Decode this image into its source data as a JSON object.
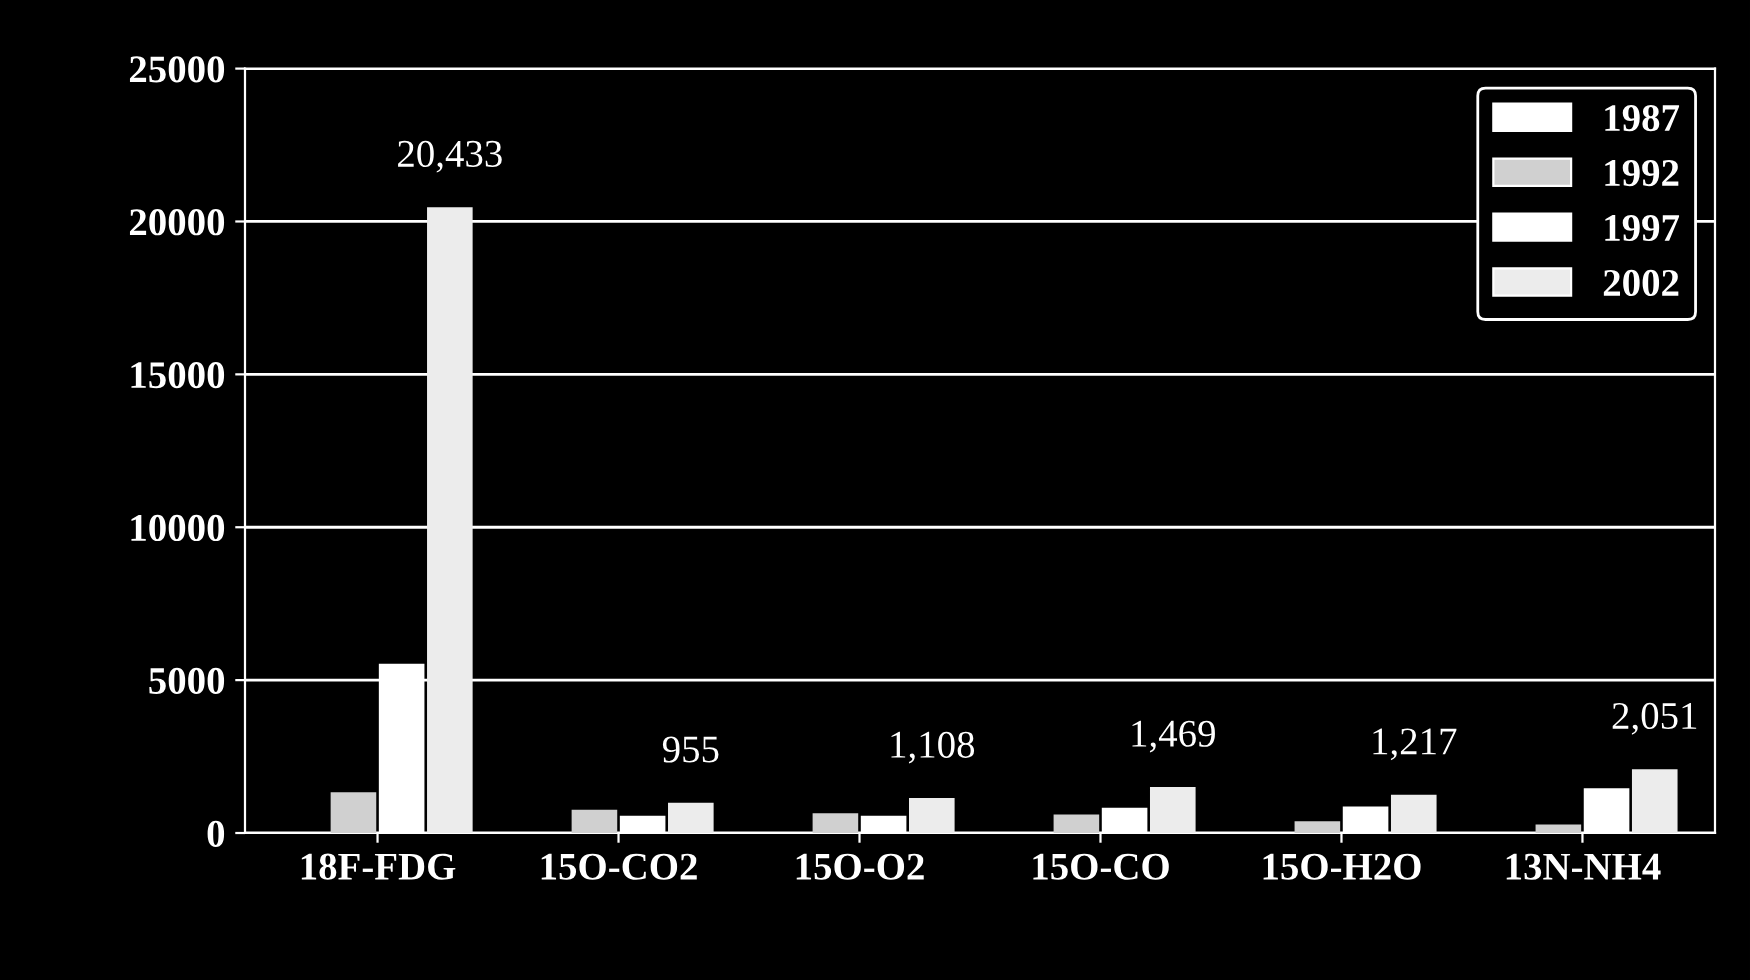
{
  "chart_data": {
    "type": "bar",
    "categories": [
      "18F-FDG",
      "15O-CO2",
      "15O-O2",
      "15O-CO",
      "15O-H2O",
      "13N-NH4"
    ],
    "series": [
      {
        "name": "1987",
        "color": "#ffffff",
        "values": [
          0,
          0,
          0,
          0,
          0,
          0
        ]
      },
      {
        "name": "1992",
        "color": "#d0d0d0",
        "values": [
          1300,
          720,
          610,
          570,
          350,
          240
        ]
      },
      {
        "name": "1997",
        "color": "#ffffff",
        "values": [
          5500,
          530,
          530,
          790,
          830,
          1430
        ]
      },
      {
        "name": "2002",
        "color": "#ececec",
        "values": [
          20433,
          955,
          1108,
          1469,
          1217,
          2051
        ],
        "value_labels": [
          "20,433",
          "955",
          "1,108",
          "1,469",
          "1,217",
          "2,051"
        ]
      }
    ],
    "ylim": [
      0,
      25000
    ],
    "yticks": [
      0,
      5000,
      10000,
      15000,
      20000,
      25000
    ],
    "grid": "y",
    "legend": "top right"
  }
}
